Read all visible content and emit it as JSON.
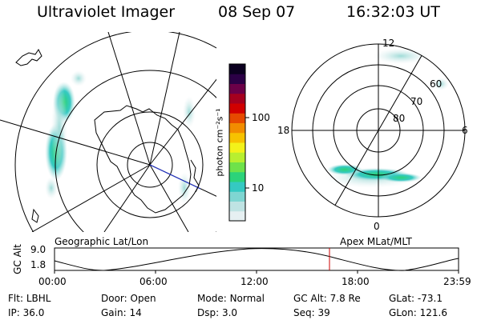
{
  "header": {
    "title": "Ultraviolet Imager",
    "date": "08 Sep 07",
    "time": "16:32:03 UT"
  },
  "left_panel": {
    "caption": "Geographic Lat/Lon"
  },
  "right_panel": {
    "caption": "Apex MLat/MLT",
    "mlt_labels": [
      "12",
      "18",
      "6",
      "0"
    ],
    "mlat_labels": [
      "60",
      "70",
      "80"
    ]
  },
  "colorbar": {
    "unit_label": "photon cm⁻²s⁻¹",
    "tick_labels": [
      "100",
      "10"
    ],
    "scale": "log",
    "colors": [
      "#e6f0f2",
      "#bfe3e3",
      "#7fd6d2",
      "#35c9c2",
      "#2cd37a",
      "#6ee24a",
      "#b8ef30",
      "#f3f21a",
      "#f7c200",
      "#f28c00",
      "#e64a00",
      "#d10000",
      "#a5001f",
      "#6b0048",
      "#2b0046",
      "#0b0020"
    ]
  },
  "altitude_plot": {
    "y_label": "GC Alt",
    "y_ticks": [
      "9.0",
      "1.8"
    ],
    "x_ticks": [
      "00:00",
      "06:00",
      "12:00",
      "18:00",
      "23:59"
    ]
  },
  "info": {
    "row1": [
      {
        "key": "Flt:",
        "value": "LBHL"
      },
      {
        "key": "Door:",
        "value": "Open"
      },
      {
        "key": "Mode:",
        "value": "Normal"
      },
      {
        "key": "GC Alt:",
        "value": "7.8 Re"
      },
      {
        "key": "GLat:",
        "value": "-73.1"
      }
    ],
    "row2": [
      {
        "key": "IP:",
        "value": "36.0"
      },
      {
        "key": "Gain:",
        "value": "14"
      },
      {
        "key": "Dsp:",
        "value": "3.0"
      },
      {
        "key": "Seq:",
        "value": "39"
      },
      {
        "key": "GLon:",
        "value": "121.6"
      }
    ]
  }
}
